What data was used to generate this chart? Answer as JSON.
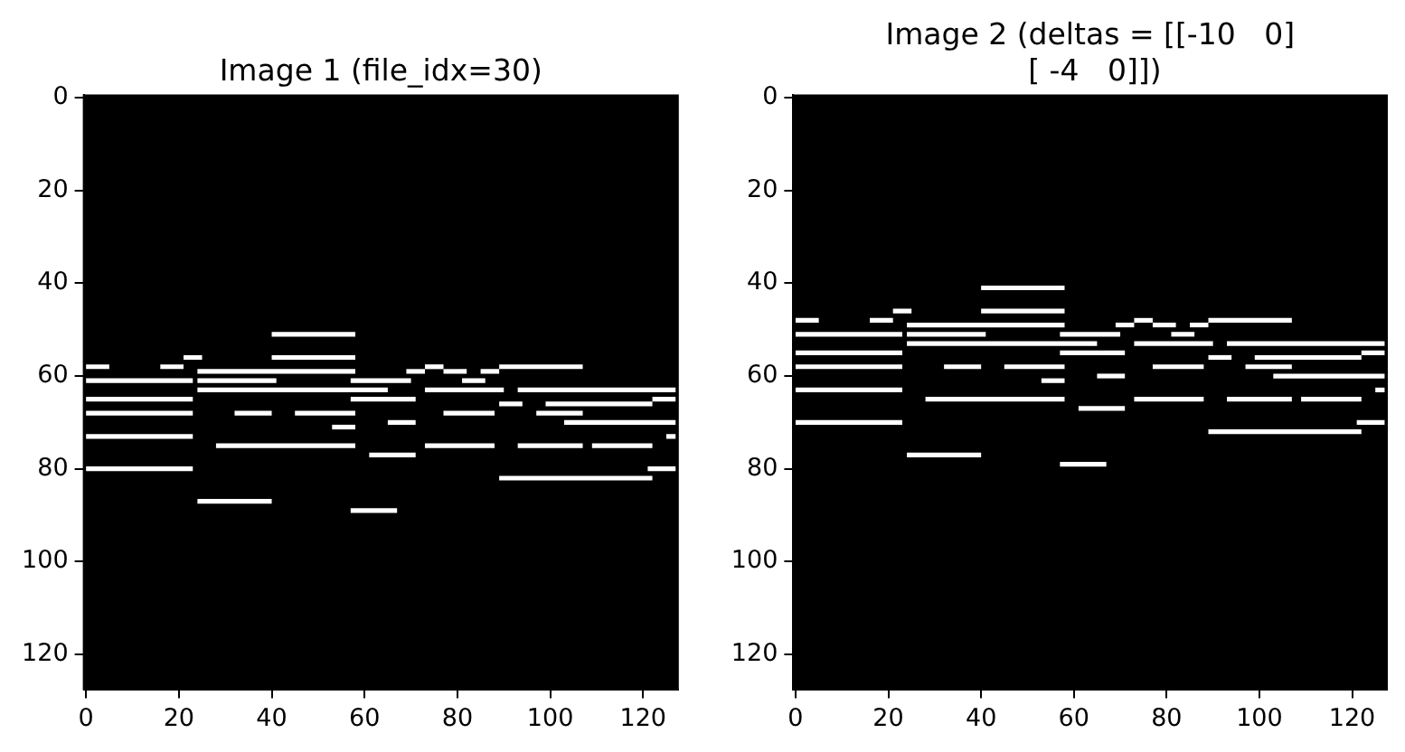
{
  "chart_data": [
    {
      "type": "line",
      "title": "Image 1 (file_idx=30)",
      "xlim": [
        -0.5,
        127.5
      ],
      "ylim": [
        127.5,
        -0.5
      ],
      "xticks": [
        0,
        20,
        40,
        60,
        80,
        100,
        120
      ],
      "yticks": [
        0,
        20,
        40,
        60,
        80,
        100,
        120
      ],
      "grid": false,
      "legend": false,
      "marker": "none",
      "series": [
        {
          "color": "#ffffff",
          "x": [
            40,
            58
          ],
          "values": [
            51,
            51
          ]
        },
        {
          "color": "#ffffff",
          "x": [
            21,
            25
          ],
          "values": [
            56,
            56
          ]
        },
        {
          "color": "#ffffff",
          "x": [
            40,
            58
          ],
          "values": [
            56,
            56
          ]
        },
        {
          "color": "#ffffff",
          "x": [
            0,
            5
          ],
          "values": [
            58,
            58
          ]
        },
        {
          "color": "#ffffff",
          "x": [
            16,
            21
          ],
          "values": [
            58,
            58
          ]
        },
        {
          "color": "#ffffff",
          "x": [
            73,
            77
          ],
          "values": [
            58,
            58
          ]
        },
        {
          "color": "#ffffff",
          "x": [
            89,
            107
          ],
          "values": [
            58,
            58
          ]
        },
        {
          "color": "#ffffff",
          "x": [
            24,
            58
          ],
          "values": [
            59,
            59
          ]
        },
        {
          "color": "#ffffff",
          "x": [
            69,
            73
          ],
          "values": [
            59,
            59
          ]
        },
        {
          "color": "#ffffff",
          "x": [
            77,
            82
          ],
          "values": [
            59,
            59
          ]
        },
        {
          "color": "#ffffff",
          "x": [
            85,
            89
          ],
          "values": [
            59,
            59
          ]
        },
        {
          "color": "#ffffff",
          "x": [
            0,
            23
          ],
          "values": [
            61,
            61
          ]
        },
        {
          "color": "#ffffff",
          "x": [
            24,
            41
          ],
          "values": [
            61,
            61
          ]
        },
        {
          "color": "#ffffff",
          "x": [
            57,
            70
          ],
          "values": [
            61,
            61
          ]
        },
        {
          "color": "#ffffff",
          "x": [
            81,
            86
          ],
          "values": [
            61,
            61
          ]
        },
        {
          "color": "#ffffff",
          "x": [
            24,
            65
          ],
          "values": [
            63,
            63
          ]
        },
        {
          "color": "#ffffff",
          "x": [
            73,
            90
          ],
          "values": [
            63,
            63
          ]
        },
        {
          "color": "#ffffff",
          "x": [
            93,
            127
          ],
          "values": [
            63,
            63
          ]
        },
        {
          "color": "#ffffff",
          "x": [
            0,
            23
          ],
          "values": [
            65,
            65
          ]
        },
        {
          "color": "#ffffff",
          "x": [
            57,
            71
          ],
          "values": [
            65,
            65
          ]
        },
        {
          "color": "#ffffff",
          "x": [
            122,
            127
          ],
          "values": [
            65,
            65
          ]
        },
        {
          "color": "#ffffff",
          "x": [
            89,
            94
          ],
          "values": [
            66,
            66
          ]
        },
        {
          "color": "#ffffff",
          "x": [
            99,
            122
          ],
          "values": [
            66,
            66
          ]
        },
        {
          "color": "#ffffff",
          "x": [
            0,
            23
          ],
          "values": [
            68,
            68
          ]
        },
        {
          "color": "#ffffff",
          "x": [
            32,
            40
          ],
          "values": [
            68,
            68
          ]
        },
        {
          "color": "#ffffff",
          "x": [
            45,
            58
          ],
          "values": [
            68,
            68
          ]
        },
        {
          "color": "#ffffff",
          "x": [
            77,
            88
          ],
          "values": [
            68,
            68
          ]
        },
        {
          "color": "#ffffff",
          "x": [
            97,
            107
          ],
          "values": [
            68,
            68
          ]
        },
        {
          "color": "#ffffff",
          "x": [
            65,
            71
          ],
          "values": [
            70,
            70
          ]
        },
        {
          "color": "#ffffff",
          "x": [
            103,
            127
          ],
          "values": [
            70,
            70
          ]
        },
        {
          "color": "#ffffff",
          "x": [
            53,
            58
          ],
          "values": [
            71,
            71
          ]
        },
        {
          "color": "#ffffff",
          "x": [
            0,
            23
          ],
          "values": [
            73,
            73
          ]
        },
        {
          "color": "#ffffff",
          "x": [
            125,
            127
          ],
          "values": [
            73,
            73
          ]
        },
        {
          "color": "#ffffff",
          "x": [
            28,
            58
          ],
          "values": [
            75,
            75
          ]
        },
        {
          "color": "#ffffff",
          "x": [
            73,
            88
          ],
          "values": [
            75,
            75
          ]
        },
        {
          "color": "#ffffff",
          "x": [
            93,
            107
          ],
          "values": [
            75,
            75
          ]
        },
        {
          "color": "#ffffff",
          "x": [
            109,
            122
          ],
          "values": [
            75,
            75
          ]
        },
        {
          "color": "#ffffff",
          "x": [
            61,
            71
          ],
          "values": [
            77,
            77
          ]
        },
        {
          "color": "#ffffff",
          "x": [
            0,
            23
          ],
          "values": [
            80,
            80
          ]
        },
        {
          "color": "#ffffff",
          "x": [
            121,
            127
          ],
          "values": [
            80,
            80
          ]
        },
        {
          "color": "#ffffff",
          "x": [
            89,
            122
          ],
          "values": [
            82,
            82
          ]
        },
        {
          "color": "#ffffff",
          "x": [
            24,
            40
          ],
          "values": [
            87,
            87
          ]
        },
        {
          "color": "#ffffff",
          "x": [
            57,
            67
          ],
          "values": [
            89,
            89
          ]
        }
      ]
    },
    {
      "type": "line",
      "title": "Image 2 (deltas = [[-10   0]\n [ -4   0]])",
      "xlim": [
        -0.5,
        127.5
      ],
      "ylim": [
        127.5,
        -0.5
      ],
      "xticks": [
        0,
        20,
        40,
        60,
        80,
        100,
        120
      ],
      "yticks": [
        0,
        20,
        40,
        60,
        80,
        100,
        120
      ],
      "grid": false,
      "legend": false,
      "marker": "none",
      "series": [
        {
          "color": "#ffffff",
          "x": [
            40,
            58
          ],
          "values": [
            41,
            41
          ]
        },
        {
          "color": "#ffffff",
          "x": [
            21,
            25
          ],
          "values": [
            46,
            46
          ]
        },
        {
          "color": "#ffffff",
          "x": [
            40,
            58
          ],
          "values": [
            46,
            46
          ]
        },
        {
          "color": "#ffffff",
          "x": [
            0,
            5
          ],
          "values": [
            48,
            48
          ]
        },
        {
          "color": "#ffffff",
          "x": [
            16,
            21
          ],
          "values": [
            48,
            48
          ]
        },
        {
          "color": "#ffffff",
          "x": [
            73,
            77
          ],
          "values": [
            48,
            48
          ]
        },
        {
          "color": "#ffffff",
          "x": [
            89,
            107
          ],
          "values": [
            48,
            48
          ]
        },
        {
          "color": "#ffffff",
          "x": [
            24,
            58
          ],
          "values": [
            49,
            49
          ]
        },
        {
          "color": "#ffffff",
          "x": [
            69,
            73
          ],
          "values": [
            49,
            49
          ]
        },
        {
          "color": "#ffffff",
          "x": [
            77,
            82
          ],
          "values": [
            49,
            49
          ]
        },
        {
          "color": "#ffffff",
          "x": [
            85,
            89
          ],
          "values": [
            49,
            49
          ]
        },
        {
          "color": "#ffffff",
          "x": [
            0,
            23
          ],
          "values": [
            51,
            51
          ]
        },
        {
          "color": "#ffffff",
          "x": [
            24,
            41
          ],
          "values": [
            51,
            51
          ]
        },
        {
          "color": "#ffffff",
          "x": [
            57,
            70
          ],
          "values": [
            51,
            51
          ]
        },
        {
          "color": "#ffffff",
          "x": [
            81,
            86
          ],
          "values": [
            51,
            51
          ]
        },
        {
          "color": "#ffffff",
          "x": [
            24,
            65
          ],
          "values": [
            53,
            53
          ]
        },
        {
          "color": "#ffffff",
          "x": [
            73,
            90
          ],
          "values": [
            53,
            53
          ]
        },
        {
          "color": "#ffffff",
          "x": [
            93,
            127
          ],
          "values": [
            53,
            53
          ]
        },
        {
          "color": "#ffffff",
          "x": [
            0,
            23
          ],
          "values": [
            55,
            55
          ]
        },
        {
          "color": "#ffffff",
          "x": [
            57,
            71
          ],
          "values": [
            55,
            55
          ]
        },
        {
          "color": "#ffffff",
          "x": [
            122,
            127
          ],
          "values": [
            55,
            55
          ]
        },
        {
          "color": "#ffffff",
          "x": [
            89,
            94
          ],
          "values": [
            56,
            56
          ]
        },
        {
          "color": "#ffffff",
          "x": [
            99,
            122
          ],
          "values": [
            56,
            56
          ]
        },
        {
          "color": "#ffffff",
          "x": [
            0,
            23
          ],
          "values": [
            58,
            58
          ]
        },
        {
          "color": "#ffffff",
          "x": [
            32,
            40
          ],
          "values": [
            58,
            58
          ]
        },
        {
          "color": "#ffffff",
          "x": [
            45,
            58
          ],
          "values": [
            58,
            58
          ]
        },
        {
          "color": "#ffffff",
          "x": [
            77,
            88
          ],
          "values": [
            58,
            58
          ]
        },
        {
          "color": "#ffffff",
          "x": [
            97,
            107
          ],
          "values": [
            58,
            58
          ]
        },
        {
          "color": "#ffffff",
          "x": [
            65,
            71
          ],
          "values": [
            60,
            60
          ]
        },
        {
          "color": "#ffffff",
          "x": [
            103,
            127
          ],
          "values": [
            60,
            60
          ]
        },
        {
          "color": "#ffffff",
          "x": [
            53,
            58
          ],
          "values": [
            61,
            61
          ]
        },
        {
          "color": "#ffffff",
          "x": [
            0,
            23
          ],
          "values": [
            63,
            63
          ]
        },
        {
          "color": "#ffffff",
          "x": [
            125,
            127
          ],
          "values": [
            63,
            63
          ]
        },
        {
          "color": "#ffffff",
          "x": [
            28,
            58
          ],
          "values": [
            65,
            65
          ]
        },
        {
          "color": "#ffffff",
          "x": [
            73,
            88
          ],
          "values": [
            65,
            65
          ]
        },
        {
          "color": "#ffffff",
          "x": [
            93,
            107
          ],
          "values": [
            65,
            65
          ]
        },
        {
          "color": "#ffffff",
          "x": [
            109,
            122
          ],
          "values": [
            65,
            65
          ]
        },
        {
          "color": "#ffffff",
          "x": [
            61,
            71
          ],
          "values": [
            67,
            67
          ]
        },
        {
          "color": "#ffffff",
          "x": [
            0,
            23
          ],
          "values": [
            70,
            70
          ]
        },
        {
          "color": "#ffffff",
          "x": [
            121,
            127
          ],
          "values": [
            70,
            70
          ]
        },
        {
          "color": "#ffffff",
          "x": [
            89,
            122
          ],
          "values": [
            72,
            72
          ]
        },
        {
          "color": "#ffffff",
          "x": [
            24,
            40
          ],
          "values": [
            77,
            77
          ]
        },
        {
          "color": "#ffffff",
          "x": [
            57,
            67
          ],
          "values": [
            79,
            79
          ]
        }
      ]
    }
  ]
}
